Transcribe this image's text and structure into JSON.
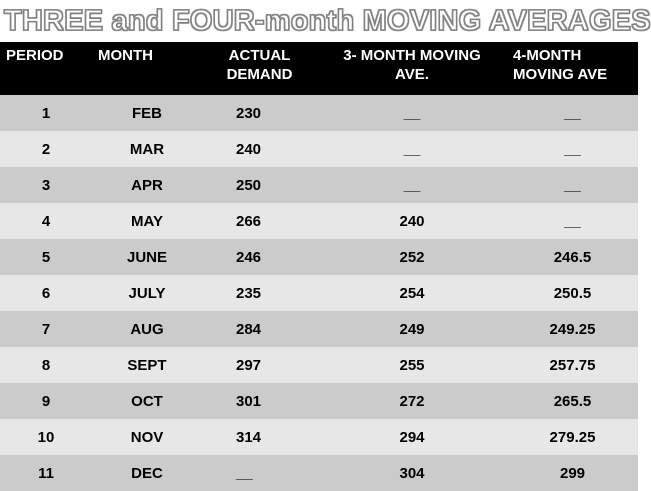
{
  "title": "THREE and FOUR-month MOVING AVERAGES",
  "headers": {
    "period": "PERIOD",
    "month": "MONTH",
    "actual_line1": "ACTUAL",
    "actual_line2": "DEMAND",
    "three_line1": "3- MONTH MOVING",
    "three_line2": "AVE.",
    "four_line1": "4-MONTH",
    "four_line2": "MOVING AVE"
  },
  "rows": [
    {
      "period": "1",
      "month": "FEB",
      "actual": "230",
      "three": "__",
      "four": "__"
    },
    {
      "period": "2",
      "month": "MAR",
      "actual": "240",
      "three": "__",
      "four": "__"
    },
    {
      "period": "3",
      "month": "APR",
      "actual": "250",
      "three": "__",
      "four": "__"
    },
    {
      "period": "4",
      "month": "MAY",
      "actual": "266",
      "three": "240",
      "four": "__"
    },
    {
      "period": "5",
      "month": "JUNE",
      "actual": "246",
      "three": "252",
      "four": "246.5"
    },
    {
      "period": "6",
      "month": "JULY",
      "actual": "235",
      "three": "254",
      "four": "250.5"
    },
    {
      "period": "7",
      "month": "AUG",
      "actual": "284",
      "three": "249",
      "four": "249.25"
    },
    {
      "period": "8",
      "month": "SEPT",
      "actual": "297",
      "three": "255",
      "four": "257.75"
    },
    {
      "period": "9",
      "month": "OCT",
      "actual": "301",
      "three": "272",
      "four": "265.5"
    },
    {
      "period": "10",
      "month": "NOV",
      "actual": "314",
      "three": "294",
      "four": "279.25"
    },
    {
      "period": "11",
      "month": "DEC",
      "actual": "__",
      "three": "304",
      "four": "299"
    }
  ]
}
